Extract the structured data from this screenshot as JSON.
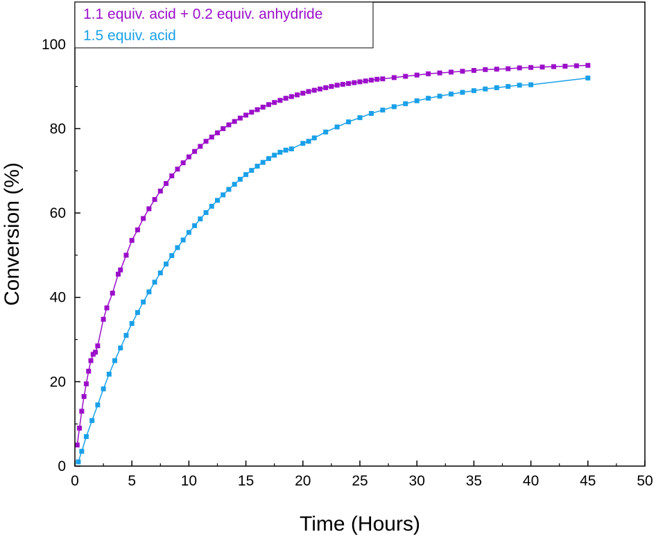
{
  "chart_data": {
    "type": "scatter",
    "xlabel": "Time (Hours)",
    "ylabel": "Conversion (%)",
    "xlim": [
      0,
      50
    ],
    "ylim": [
      0,
      110
    ],
    "xticks": [
      "0",
      "5",
      "10",
      "15",
      "20",
      "25",
      "30",
      "35",
      "40",
      "45",
      "50"
    ],
    "yticks": [
      "0",
      "20",
      "40",
      "60",
      "80",
      "100"
    ],
    "grid": false,
    "legend_position": "top-left",
    "series": [
      {
        "name": "1.1 equiv. acid + 0.2 equiv. anhydride",
        "color": "#9b0fc9",
        "marker": "square",
        "connected": true,
        "x": [
          0.2,
          0.4,
          0.6,
          0.8,
          1.0,
          1.2,
          1.4,
          1.6,
          1.8,
          2.0,
          2.5,
          2.8,
          3.3,
          3.8,
          4.0,
          4.5,
          5.0,
          5.5,
          6.0,
          6.5,
          7.0,
          7.5,
          8.0,
          8.5,
          9.0,
          9.5,
          10.0,
          10.5,
          11.0,
          11.5,
          12.0,
          12.5,
          13.0,
          13.5,
          14.0,
          14.5,
          15.0,
          15.5,
          16.0,
          16.5,
          17.0,
          17.5,
          18.0,
          18.5,
          19.0,
          19.5,
          20.0,
          20.5,
          21.0,
          21.5,
          22.0,
          22.5,
          23.0,
          23.5,
          24.0,
          24.5,
          25.0,
          25.5,
          26.0,
          26.5,
          27.0,
          28.0,
          29.0,
          30.0,
          31.0,
          32.0,
          33.0,
          34.0,
          35.0,
          36.0,
          37.0,
          38.0,
          39.0,
          40.0,
          41.0,
          42.0,
          43.0,
          44.0,
          45.0
        ],
        "y": [
          5.0,
          9.0,
          13.0,
          16.5,
          19.5,
          22.5,
          25.0,
          26.5,
          27.0,
          28.5,
          34.8,
          37.5,
          41.0,
          45.5,
          46.5,
          50.0,
          53.5,
          56.0,
          58.7,
          61.0,
          63.2,
          65.2,
          67.0,
          68.8,
          70.4,
          71.9,
          73.3,
          74.6,
          75.8,
          77.0,
          78.0,
          79.0,
          80.0,
          80.9,
          81.7,
          82.5,
          83.2,
          83.9,
          84.5,
          85.1,
          85.7,
          86.2,
          86.7,
          87.2,
          87.6,
          88.0,
          88.4,
          88.8,
          89.1,
          89.4,
          89.7,
          90.0,
          90.3,
          90.5,
          90.7,
          90.9,
          91.1,
          91.3,
          91.5,
          91.7,
          91.8,
          92.1,
          92.4,
          92.7,
          93.0,
          93.2,
          93.4,
          93.6,
          93.8,
          94.0,
          94.1,
          94.2,
          94.4,
          94.5,
          94.6,
          94.7,
          94.8,
          94.9,
          95.0
        ]
      },
      {
        "name": "1.5 equiv. acid",
        "color": "#1aa0e8",
        "marker": "square",
        "connected": true,
        "x": [
          0.3,
          0.6,
          1.0,
          1.5,
          2.0,
          2.5,
          3.0,
          3.5,
          4.0,
          4.5,
          5.0,
          5.5,
          6.0,
          6.5,
          7.0,
          7.5,
          8.0,
          8.5,
          9.0,
          9.5,
          10.0,
          10.5,
          11.0,
          11.5,
          12.0,
          12.5,
          13.0,
          13.5,
          14.0,
          14.5,
          15.0,
          15.5,
          16.0,
          16.5,
          17.0,
          17.5,
          18.0,
          18.5,
          19.0,
          20.0,
          20.5,
          21.0,
          22.0,
          23.0,
          24.0,
          25.0,
          26.0,
          27.0,
          28.0,
          29.0,
          30.0,
          31.0,
          32.0,
          33.0,
          34.0,
          35.0,
          36.0,
          37.0,
          38.0,
          39.0,
          40.0,
          45.0
        ],
        "y": [
          1.0,
          3.5,
          7.0,
          10.8,
          14.5,
          18.3,
          21.8,
          25.0,
          28.0,
          31.0,
          33.8,
          36.4,
          38.9,
          41.3,
          43.6,
          45.8,
          47.9,
          49.9,
          51.8,
          53.6,
          55.4,
          57.0,
          58.6,
          60.1,
          61.6,
          63.0,
          64.3,
          65.6,
          66.8,
          68.0,
          69.1,
          70.1,
          71.1,
          72.0,
          72.9,
          73.7,
          74.4,
          74.9,
          75.2,
          76.5,
          77.0,
          77.8,
          79.2,
          80.4,
          81.6,
          82.6,
          83.6,
          84.4,
          85.2,
          85.9,
          86.6,
          87.2,
          87.7,
          88.2,
          88.6,
          89.0,
          89.4,
          89.7,
          90.0,
          90.3,
          90.4,
          92.0
        ]
      }
    ]
  }
}
